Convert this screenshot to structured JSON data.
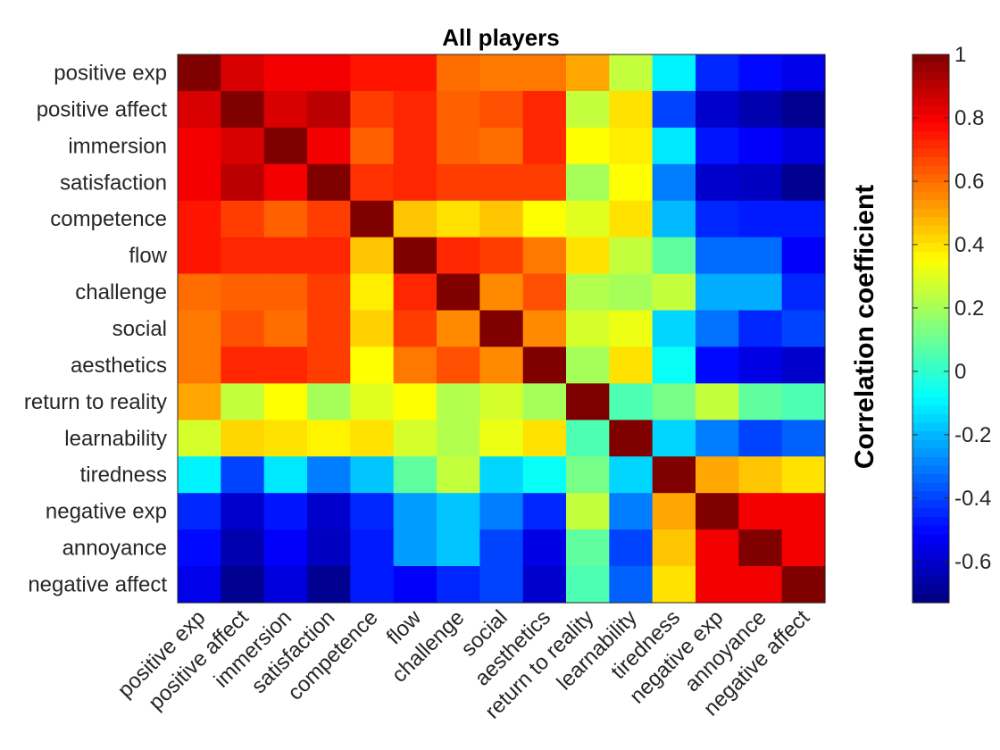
{
  "chart_data": {
    "type": "heatmap",
    "title": "All players",
    "xlabel": "",
    "ylabel": "",
    "row_labels": [
      "positive exp",
      "positive affect",
      "immersion",
      "satisfaction",
      "competence",
      "flow",
      "challenge",
      "social",
      "aesthetics",
      "return to reality",
      "learnability",
      "tiredness",
      "negative exp",
      "annoyance",
      "negative affect"
    ],
    "col_labels": [
      "positive exp",
      "positive affect",
      "immersion",
      "satisfaction",
      "competence",
      "flow",
      "challenge",
      "social",
      "aesthetics",
      "return to reality",
      "learnability",
      "tiredness",
      "negative exp",
      "annoyance",
      "negative affect"
    ],
    "values": [
      [
        1.0,
        0.85,
        0.8,
        0.8,
        0.75,
        0.75,
        0.6,
        0.58,
        0.58,
        0.5,
        0.25,
        -0.1,
        -0.45,
        -0.5,
        -0.55
      ],
      [
        0.85,
        1.0,
        0.85,
        0.9,
        0.68,
        0.72,
        0.62,
        0.65,
        0.72,
        0.25,
        0.4,
        -0.4,
        -0.6,
        -0.65,
        -0.7
      ],
      [
        0.8,
        0.85,
        1.0,
        0.8,
        0.62,
        0.72,
        0.62,
        0.6,
        0.72,
        0.35,
        0.38,
        -0.12,
        -0.48,
        -0.52,
        -0.57
      ],
      [
        0.8,
        0.9,
        0.8,
        1.0,
        0.7,
        0.72,
        0.68,
        0.68,
        0.68,
        0.2,
        0.35,
        -0.3,
        -0.6,
        -0.62,
        -0.7
      ],
      [
        0.75,
        0.68,
        0.62,
        0.68,
        1.0,
        0.45,
        0.4,
        0.45,
        0.35,
        0.3,
        0.4,
        -0.2,
        -0.45,
        -0.47,
        -0.47
      ],
      [
        0.75,
        0.72,
        0.72,
        0.72,
        0.45,
        1.0,
        0.72,
        0.68,
        0.58,
        0.4,
        0.25,
        0.08,
        -0.33,
        -0.33,
        -0.52
      ],
      [
        0.6,
        0.62,
        0.62,
        0.68,
        0.38,
        0.72,
        1.0,
        0.55,
        0.65,
        0.22,
        0.2,
        0.25,
        -0.22,
        -0.22,
        -0.45
      ],
      [
        0.58,
        0.65,
        0.6,
        0.68,
        0.43,
        0.68,
        0.55,
        1.0,
        0.55,
        0.28,
        0.32,
        -0.15,
        -0.32,
        -0.45,
        -0.4
      ],
      [
        0.58,
        0.72,
        0.72,
        0.68,
        0.35,
        0.58,
        0.65,
        0.55,
        1.0,
        0.2,
        0.4,
        -0.07,
        -0.5,
        -0.56,
        -0.6
      ],
      [
        0.5,
        0.25,
        0.35,
        0.2,
        0.3,
        0.35,
        0.22,
        0.28,
        0.2,
        1.0,
        0.05,
        0.12,
        0.25,
        0.08,
        0.05
      ],
      [
        0.28,
        0.42,
        0.4,
        0.37,
        0.4,
        0.28,
        0.22,
        0.32,
        0.4,
        0.05,
        1.0,
        -0.15,
        -0.3,
        -0.4,
        -0.35
      ],
      [
        -0.1,
        -0.4,
        -0.12,
        -0.3,
        -0.18,
        0.08,
        0.25,
        -0.15,
        -0.07,
        0.12,
        -0.15,
        1.0,
        0.5,
        0.45,
        0.4
      ],
      [
        -0.45,
        -0.6,
        -0.48,
        -0.6,
        -0.45,
        -0.25,
        -0.18,
        -0.3,
        -0.45,
        0.25,
        -0.3,
        0.5,
        1.0,
        0.8,
        0.8
      ],
      [
        -0.5,
        -0.65,
        -0.52,
        -0.62,
        -0.47,
        -0.25,
        -0.18,
        -0.4,
        -0.56,
        0.08,
        -0.4,
        0.45,
        0.8,
        1.0,
        0.8
      ],
      [
        -0.55,
        -0.7,
        -0.57,
        -0.7,
        -0.47,
        -0.52,
        -0.45,
        -0.4,
        -0.6,
        0.05,
        -0.35,
        0.4,
        0.8,
        0.8,
        1.0
      ]
    ],
    "colormap": "jet",
    "clim": [
      -0.73,
      1.0
    ],
    "colorbar": {
      "label": "Correlation coefficient",
      "ticks": [
        1,
        0.8,
        0.6,
        0.4,
        0.2,
        0,
        -0.2,
        -0.4,
        -0.6
      ],
      "tick_labels": [
        "1",
        "0.8",
        "0.6",
        "0.4",
        "0.2",
        "0",
        "-0.2",
        "-0.4",
        "-0.6"
      ],
      "placement": "right"
    },
    "grid": false
  }
}
